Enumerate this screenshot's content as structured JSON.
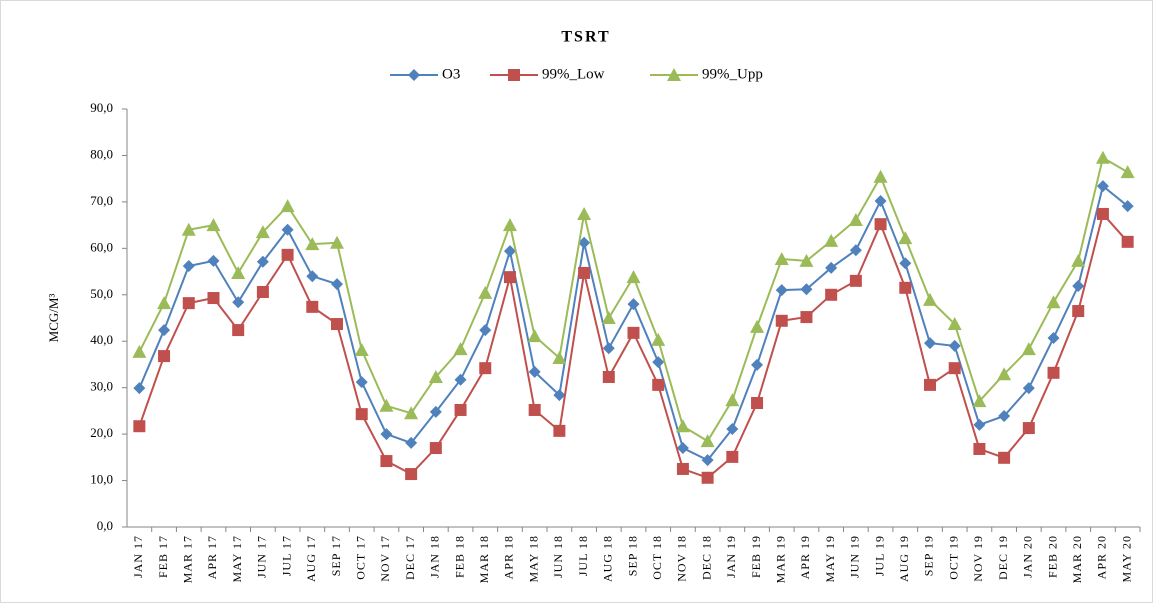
{
  "chart_data": {
    "type": "line",
    "title": "TSRT",
    "y_label": "MCG/M³",
    "categories": [
      "JAN 17",
      "FEB 17",
      "MAR 17",
      "APR 17",
      "MAY 17",
      "JUN 17",
      "JUL 17",
      "AUG 17",
      "SEP 17",
      "OCT 17",
      "NOV 17",
      "DEC 17",
      "JAN 18",
      "FEB 18",
      "MAR 18",
      "APR 18",
      "MAY 18",
      "JUN 18",
      "JUL 18",
      "AUG 18",
      "SEP 18",
      "OCT 18",
      "NOV 18",
      "DEC 18",
      "JAN 19",
      "FEB 19",
      "MAR 19",
      "APR 19",
      "MAY 19",
      "JUN 19",
      "JUL 19",
      "AUG 19",
      "SEP 19",
      "OCT 19",
      "NOV 19",
      "DEC 19",
      "JAN 20",
      "FEB 20",
      "MAR 20",
      "APR 20",
      "MAY 20"
    ],
    "series": [
      {
        "name": "O3",
        "color": "#4f81bd",
        "marker": "diamond",
        "values": [
          29.9,
          42.4,
          56.2,
          57.3,
          48.4,
          57.1,
          64.0,
          54.0,
          52.3,
          31.2,
          20.0,
          18.1,
          24.8,
          31.7,
          42.4,
          59.4,
          33.4,
          28.4,
          61.2,
          38.5,
          48.0,
          35.5,
          17.0,
          14.4,
          21.1,
          34.9,
          51.0,
          51.2,
          55.8,
          59.6,
          70.2,
          56.8,
          39.6,
          39.0,
          22.0,
          23.9,
          29.9,
          40.7,
          51.9,
          73.4,
          69.1
        ]
      },
      {
        "name": "99%_Low",
        "color": "#c0504d",
        "marker": "square",
        "values": [
          21.7,
          36.8,
          48.2,
          49.3,
          42.4,
          50.6,
          58.6,
          47.4,
          43.7,
          24.3,
          14.2,
          11.4,
          17.0,
          25.2,
          34.2,
          53.8,
          25.2,
          20.7,
          54.7,
          32.3,
          41.8,
          30.6,
          12.5,
          10.6,
          15.1,
          26.7,
          44.4,
          45.2,
          50.0,
          53.0,
          65.2,
          51.5,
          30.6,
          34.2,
          16.8,
          14.9,
          21.3,
          33.2,
          46.5,
          67.4,
          61.4
        ]
      },
      {
        "name": "99%_Upp",
        "color": "#9bbb59",
        "marker": "triangle",
        "values": [
          37.7,
          48.2,
          64.0,
          65.0,
          54.7,
          63.5,
          69.1,
          60.9,
          61.2,
          38.1,
          26.1,
          24.5,
          32.3,
          38.3,
          50.4,
          65.0,
          41.1,
          36.4,
          67.4,
          45.0,
          53.8,
          40.3,
          21.7,
          18.5,
          27.3,
          43.1,
          57.7,
          57.3,
          61.6,
          66.1,
          75.4,
          62.2,
          48.9,
          43.7,
          27.1,
          32.9,
          38.3,
          48.4,
          57.3,
          79.5,
          76.4
        ]
      }
    ],
    "ylim": [
      0,
      90
    ],
    "yticks": [
      {
        "value": 0,
        "label": "0,0"
      },
      {
        "value": 10,
        "label": "10,0"
      },
      {
        "value": 20,
        "label": "20,0"
      },
      {
        "value": 30,
        "label": "30,0"
      },
      {
        "value": 40,
        "label": "40,0"
      },
      {
        "value": 50,
        "label": "50,0"
      },
      {
        "value": 60,
        "label": "60,0"
      },
      {
        "value": 70,
        "label": "70,0"
      },
      {
        "value": 80,
        "label": "80,0"
      },
      {
        "value": 90,
        "label": "90,0"
      }
    ],
    "grid": false,
    "legend": "top"
  }
}
